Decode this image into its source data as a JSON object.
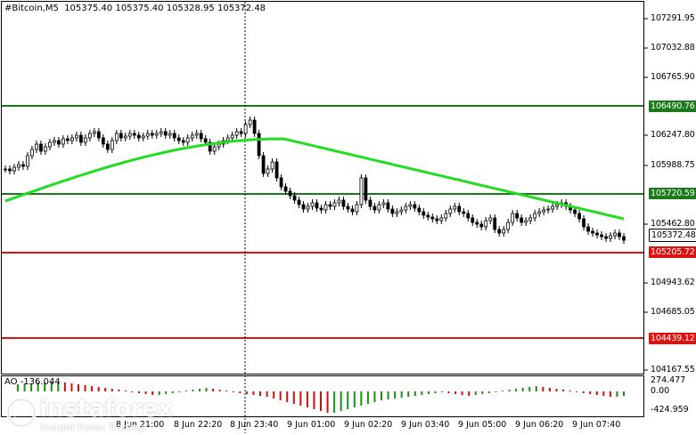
{
  "header": {
    "title": "#Bitcoin,M5  105375.40 105375.40 105328.95 105372.48"
  },
  "price_axis": {
    "labels": [
      "107291.95",
      "107032.88",
      "106765.90",
      "106247.80",
      "105988.75",
      "105462.80",
      "104943.62",
      "104685.05",
      "104167.55"
    ]
  },
  "levels": [
    {
      "value": "106490.76",
      "color": "#1a7a1a",
      "text_color": "#ffffff"
    },
    {
      "value": "105720.59",
      "color": "#1a7a1a",
      "text_color": "#ffffff"
    },
    {
      "value": "105205.72",
      "color": "#e01010",
      "text_color": "#ffffff"
    },
    {
      "value": "104439.12",
      "color": "#e01010",
      "text_color": "#ffffff"
    }
  ],
  "current_price": {
    "value": "105372.48",
    "color": "#ffffff"
  },
  "indicator": {
    "label": "AO -136.044",
    "axis_labels": [
      "274.477",
      "0.00",
      "-424.959"
    ],
    "colors": {
      "up": "#1a8f1a",
      "down": "#d01010"
    }
  },
  "time_axis": {
    "labels": [
      "8 Jun 21:00",
      "8 Jun 22:20",
      "8 Jun 23:40",
      "9 Jun 01:00",
      "9 Jun 02:20",
      "9 Jun 03:40",
      "9 Jun 05:00",
      "9 Jun 06:20",
      "9 Jun 07:40"
    ]
  },
  "colors": {
    "ma_line": "#22dd22",
    "candle": "#000000"
  },
  "logo": {
    "name": "instaforex",
    "tagline": "Instant Forex Trading"
  }
}
